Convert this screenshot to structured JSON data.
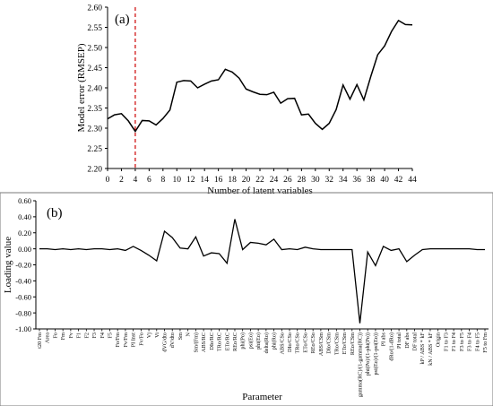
{
  "chart_data": [
    {
      "panel": "(a)",
      "type": "line",
      "xlabel": "Number of latent variables",
      "ylabel": "Model error (RMSEP)",
      "xlim": [
        0,
        44
      ],
      "ylim": [
        2.2,
        2.6
      ],
      "x_ticks": [
        0,
        2,
        4,
        6,
        8,
        10,
        12,
        14,
        16,
        18,
        20,
        22,
        24,
        26,
        28,
        30,
        32,
        34,
        36,
        38,
        40,
        42,
        44
      ],
      "y_ticks": [
        "2.20",
        "2.25",
        "2.30",
        "2.35",
        "2.40",
        "2.45",
        "2.50",
        "2.55",
        "2.60"
      ],
      "grid": false,
      "marker_line": {
        "x": 4,
        "style": "dashed",
        "color": "#cc0000"
      },
      "series_color": "#000000",
      "x": [
        0,
        1,
        2,
        3,
        4,
        5,
        6,
        7,
        8,
        9,
        10,
        11,
        12,
        13,
        14,
        15,
        16,
        17,
        18,
        19,
        20,
        21,
        22,
        23,
        24,
        25,
        26,
        27,
        28,
        29,
        30,
        31,
        32,
        33,
        34,
        35,
        36,
        37,
        38,
        39,
        40,
        41,
        42,
        43,
        44
      ],
      "values": [
        2.323,
        2.333,
        2.336,
        2.318,
        2.292,
        2.319,
        2.318,
        2.308,
        2.324,
        2.345,
        2.414,
        2.418,
        2.417,
        2.4,
        2.409,
        2.417,
        2.42,
        2.446,
        2.439,
        2.424,
        2.397,
        2.39,
        2.384,
        2.383,
        2.389,
        2.362,
        2.373,
        2.374,
        2.333,
        2.335,
        2.312,
        2.297,
        2.312,
        2.346,
        2.407,
        2.372,
        2.408,
        2.37,
        2.428,
        2.482,
        2.504,
        2.54,
        2.567,
        2.557,
        2.556
      ]
    },
    {
      "panel": "(b)",
      "type": "line",
      "xlabel": "Parameter",
      "ylabel": "Loading value",
      "ylim": [
        -1.0,
        0.6
      ],
      "y_ticks": [
        "0.60",
        "0.40",
        "0.20",
        "0.00",
        "-0.20",
        "-0.40",
        "-0.60",
        "-0.80",
        "-1.00"
      ],
      "grid": false,
      "series_color": "#000000",
      "categories": [
        "t20 Fm",
        "Area",
        "Fo",
        "Fm",
        "Fv",
        "F1",
        "F2",
        "F3",
        "F4",
        "F5",
        "Fo/Fm",
        "Fv/Fm",
        "PI Inst",
        "Fv/Fo",
        "Vj",
        "Vi",
        "dVG/dto",
        "dV/dto",
        "Sm",
        "N",
        "Sm/(Fm)",
        "ABS/RC",
        "DIo/RC",
        "TRo/RC",
        "ETo/RC",
        "REo/RC",
        "phi(Po)",
        "psi(Eo)",
        "phi(Eo)",
        "delta(Ro)",
        "phi(Ro)",
        "ABS/CSo",
        "DIo/CSo",
        "TRo/CSo",
        "ETo/CSo",
        "REo/CSo",
        "ABS/CSm",
        "DIo/CSm",
        "TRo/CSm",
        "ETo/CSm",
        "REo/CSm",
        "gamma(RC)/(1-gamma(RC))",
        "phi(Po)/(1-phi(Po))",
        "psi(Eo)/(1-psi(Eo))",
        "PI abs",
        "dRo/(1-dRo)",
        "PI total",
        "DF abs",
        "DF total",
        "kP / ABS * kF",
        "kN / ABS * kF",
        "Origin",
        "F1 to F3",
        "F1 to F4",
        "F3 to F5",
        "F3 to F4",
        "F4 to F5",
        "F5 to Fm"
      ],
      "values": [
        0.0,
        0.0,
        -0.01,
        0.0,
        -0.01,
        0.0,
        -0.01,
        0.0,
        0.0,
        -0.01,
        0.0,
        -0.02,
        0.03,
        -0.02,
        -0.08,
        -0.15,
        0.22,
        0.14,
        0.01,
        0.0,
        0.15,
        -0.09,
        -0.05,
        -0.06,
        -0.18,
        0.37,
        -0.01,
        0.08,
        0.07,
        0.05,
        0.12,
        -0.01,
        0.0,
        -0.01,
        0.02,
        0.0,
        -0.01,
        -0.01,
        -0.01,
        -0.01,
        -0.01,
        -0.93,
        -0.04,
        -0.21,
        0.03,
        -0.02,
        0.0,
        -0.16,
        -0.08,
        -0.01,
        0.0,
        0.0,
        0.0,
        0.0,
        0.0,
        0.0,
        -0.01,
        -0.01
      ]
    }
  ]
}
